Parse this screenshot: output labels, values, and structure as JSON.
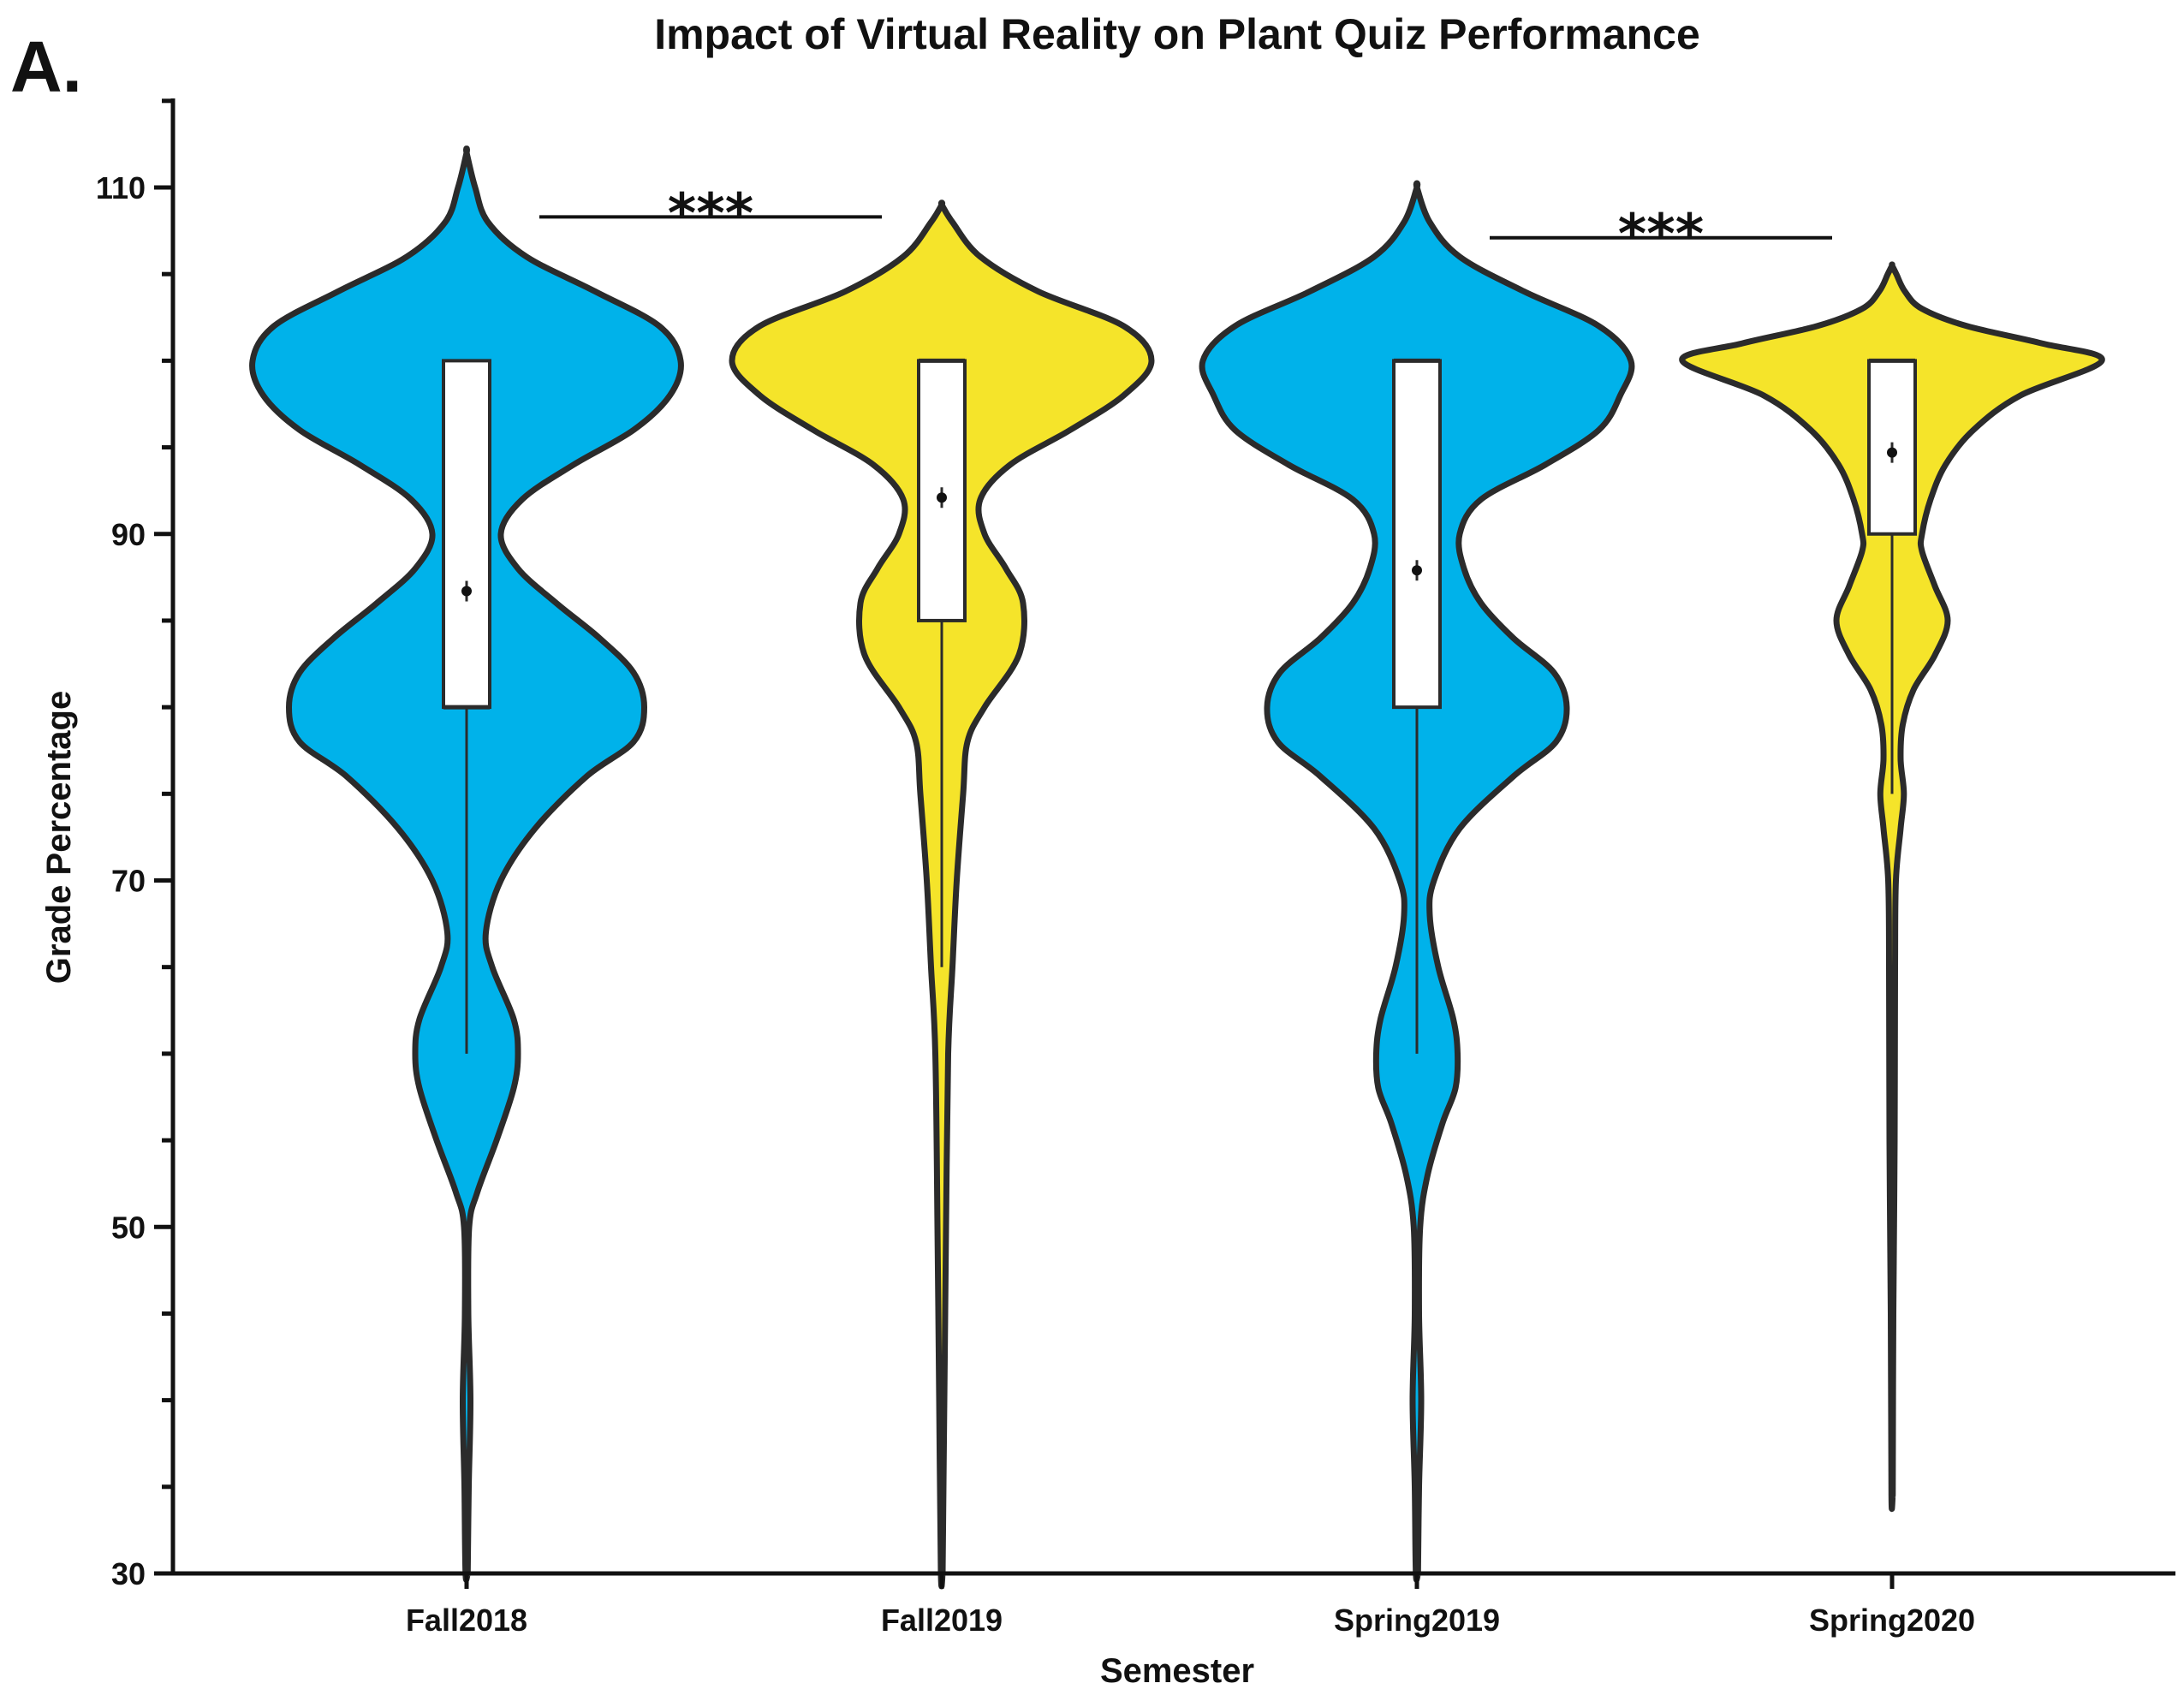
{
  "panel_label": "A.",
  "colors": {
    "group1": "#00B2EA",
    "group2": "#F5E42A",
    "outline": "#2B2B2B",
    "box": "#FFFFFF"
  },
  "chart_data": {
    "type": "violin",
    "title": "Impact of Virtual Reality on Plant Quiz Performance",
    "xlabel": "Semester",
    "ylabel": "Grade Percentage",
    "ylim": [
      30,
      115
    ],
    "yticks": [
      30,
      50,
      70,
      90,
      110
    ],
    "categories": [
      "Fall2018",
      "Fall2019",
      "Spring2019",
      "Spring2020"
    ],
    "series": [
      {
        "category": "Fall2018",
        "color": "#00B2EA",
        "box": {
          "q1": 80,
          "median": 80,
          "q3": 100,
          "whisker_low": 60,
          "whisker_high": 100,
          "mean": 86.7
        },
        "violin_range": [
          30,
          112
        ],
        "density": [
          [
            30,
            0.005
          ],
          [
            35,
            0.01
          ],
          [
            40,
            0.018
          ],
          [
            45,
            0.008
          ],
          [
            50,
            0.012
          ],
          [
            52,
            0.05
          ],
          [
            55,
            0.14
          ],
          [
            58,
            0.22
          ],
          [
            60,
            0.24
          ],
          [
            62,
            0.22
          ],
          [
            65,
            0.12
          ],
          [
            67,
            0.09
          ],
          [
            70,
            0.16
          ],
          [
            73,
            0.32
          ],
          [
            76,
            0.56
          ],
          [
            78,
            0.78
          ],
          [
            80,
            0.83
          ],
          [
            82,
            0.78
          ],
          [
            84,
            0.62
          ],
          [
            86,
            0.42
          ],
          [
            88,
            0.24
          ],
          [
            90,
            0.16
          ],
          [
            92,
            0.26
          ],
          [
            94,
            0.5
          ],
          [
            96,
            0.78
          ],
          [
            98,
            0.95
          ],
          [
            100,
            1.0
          ],
          [
            102,
            0.9
          ],
          [
            104,
            0.6
          ],
          [
            106,
            0.28
          ],
          [
            108,
            0.1
          ],
          [
            110,
            0.04
          ],
          [
            112,
            0.0
          ]
        ]
      },
      {
        "category": "Fall2019",
        "color": "#F5E42A",
        "box": {
          "q1": 85,
          "median": 100,
          "q3": 100,
          "whisker_low": 65,
          "whisker_high": 100,
          "mean": 92.1
        },
        "violin_range": [
          30,
          109
        ],
        "density": [
          [
            30,
            0.004
          ],
          [
            40,
            0.012
          ],
          [
            50,
            0.02
          ],
          [
            60,
            0.03
          ],
          [
            65,
            0.05
          ],
          [
            70,
            0.07
          ],
          [
            75,
            0.1
          ],
          [
            78,
            0.12
          ],
          [
            80,
            0.2
          ],
          [
            83,
            0.36
          ],
          [
            86,
            0.38
          ],
          [
            88,
            0.3
          ],
          [
            90,
            0.2
          ],
          [
            92,
            0.18
          ],
          [
            94,
            0.32
          ],
          [
            96,
            0.6
          ],
          [
            98,
            0.85
          ],
          [
            100,
            0.98
          ],
          [
            102,
            0.85
          ],
          [
            104,
            0.45
          ],
          [
            106,
            0.18
          ],
          [
            108,
            0.05
          ],
          [
            109,
            0.0
          ]
        ]
      },
      {
        "category": "Spring2019",
        "color": "#00B2EA",
        "box": {
          "q1": 80,
          "median": 100,
          "q3": 100,
          "whisker_low": 60,
          "whisker_high": 100,
          "mean": 87.9
        },
        "violin_range": [
          30,
          110
        ],
        "density": [
          [
            30,
            0.005
          ],
          [
            35,
            0.01
          ],
          [
            40,
            0.02
          ],
          [
            45,
            0.01
          ],
          [
            50,
            0.015
          ],
          [
            53,
            0.05
          ],
          [
            56,
            0.12
          ],
          [
            58,
            0.18
          ],
          [
            60,
            0.19
          ],
          [
            62,
            0.17
          ],
          [
            65,
            0.1
          ],
          [
            68,
            0.06
          ],
          [
            70,
            0.08
          ],
          [
            73,
            0.2
          ],
          [
            76,
            0.45
          ],
          [
            78,
            0.65
          ],
          [
            80,
            0.7
          ],
          [
            82,
            0.64
          ],
          [
            84,
            0.45
          ],
          [
            86,
            0.3
          ],
          [
            88,
            0.22
          ],
          [
            90,
            0.2
          ],
          [
            92,
            0.3
          ],
          [
            94,
            0.6
          ],
          [
            96,
            0.85
          ],
          [
            98,
            0.95
          ],
          [
            100,
            1.0
          ],
          [
            102,
            0.85
          ],
          [
            104,
            0.5
          ],
          [
            106,
            0.2
          ],
          [
            108,
            0.06
          ],
          [
            110,
            0.0
          ]
        ]
      },
      {
        "category": "Spring2020",
        "color": "#F5E42A",
        "box": {
          "q1": 90,
          "median": 100,
          "q3": 100,
          "whisker_low": 75,
          "whisker_high": 100,
          "mean": 94.7
        },
        "violin_range": [
          34.5,
          105.5
        ],
        "density": [
          [
            34.5,
            0.003
          ],
          [
            45,
            0.006
          ],
          [
            55,
            0.012
          ],
          [
            65,
            0.014
          ],
          [
            70,
            0.018
          ],
          [
            73,
            0.04
          ],
          [
            75,
            0.055
          ],
          [
            77,
            0.04
          ],
          [
            79,
            0.05
          ],
          [
            81,
            0.1
          ],
          [
            83,
            0.2
          ],
          [
            85,
            0.26
          ],
          [
            87,
            0.2
          ],
          [
            89,
            0.14
          ],
          [
            90,
            0.14
          ],
          [
            92,
            0.18
          ],
          [
            94,
            0.25
          ],
          [
            96,
            0.38
          ],
          [
            98,
            0.6
          ],
          [
            100,
            0.98
          ],
          [
            101,
            0.7
          ],
          [
            102,
            0.35
          ],
          [
            103,
            0.14
          ],
          [
            104,
            0.06
          ],
          [
            105,
            0.02
          ],
          [
            105.5,
            0.0
          ]
        ]
      }
    ],
    "significance": [
      {
        "label": "***",
        "from": "Fall2018",
        "to": "Fall2019",
        "y": 108.3
      },
      {
        "label": "***",
        "from": "Spring2019",
        "to": "Spring2020",
        "y": 107.1
      }
    ]
  }
}
